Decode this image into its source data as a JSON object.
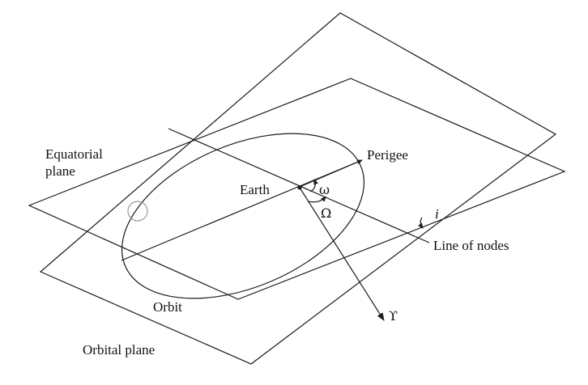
{
  "labels": {
    "equatorial_plane_line1": "Equatorial",
    "equatorial_plane_line2": "plane",
    "earth": "Earth",
    "perigee": "Perigee",
    "omega_small": "ω",
    "omega_capital": "Ω",
    "inclination": "i",
    "line_of_nodes": "Line of nodes",
    "vernal_equinox": "ϒ",
    "orbit": "Orbit",
    "orbital_plane": "Orbital plane"
  },
  "colors": {
    "line": "#1a1a1a",
    "satellite_marker": "#999999",
    "background": "#ffffff"
  }
}
